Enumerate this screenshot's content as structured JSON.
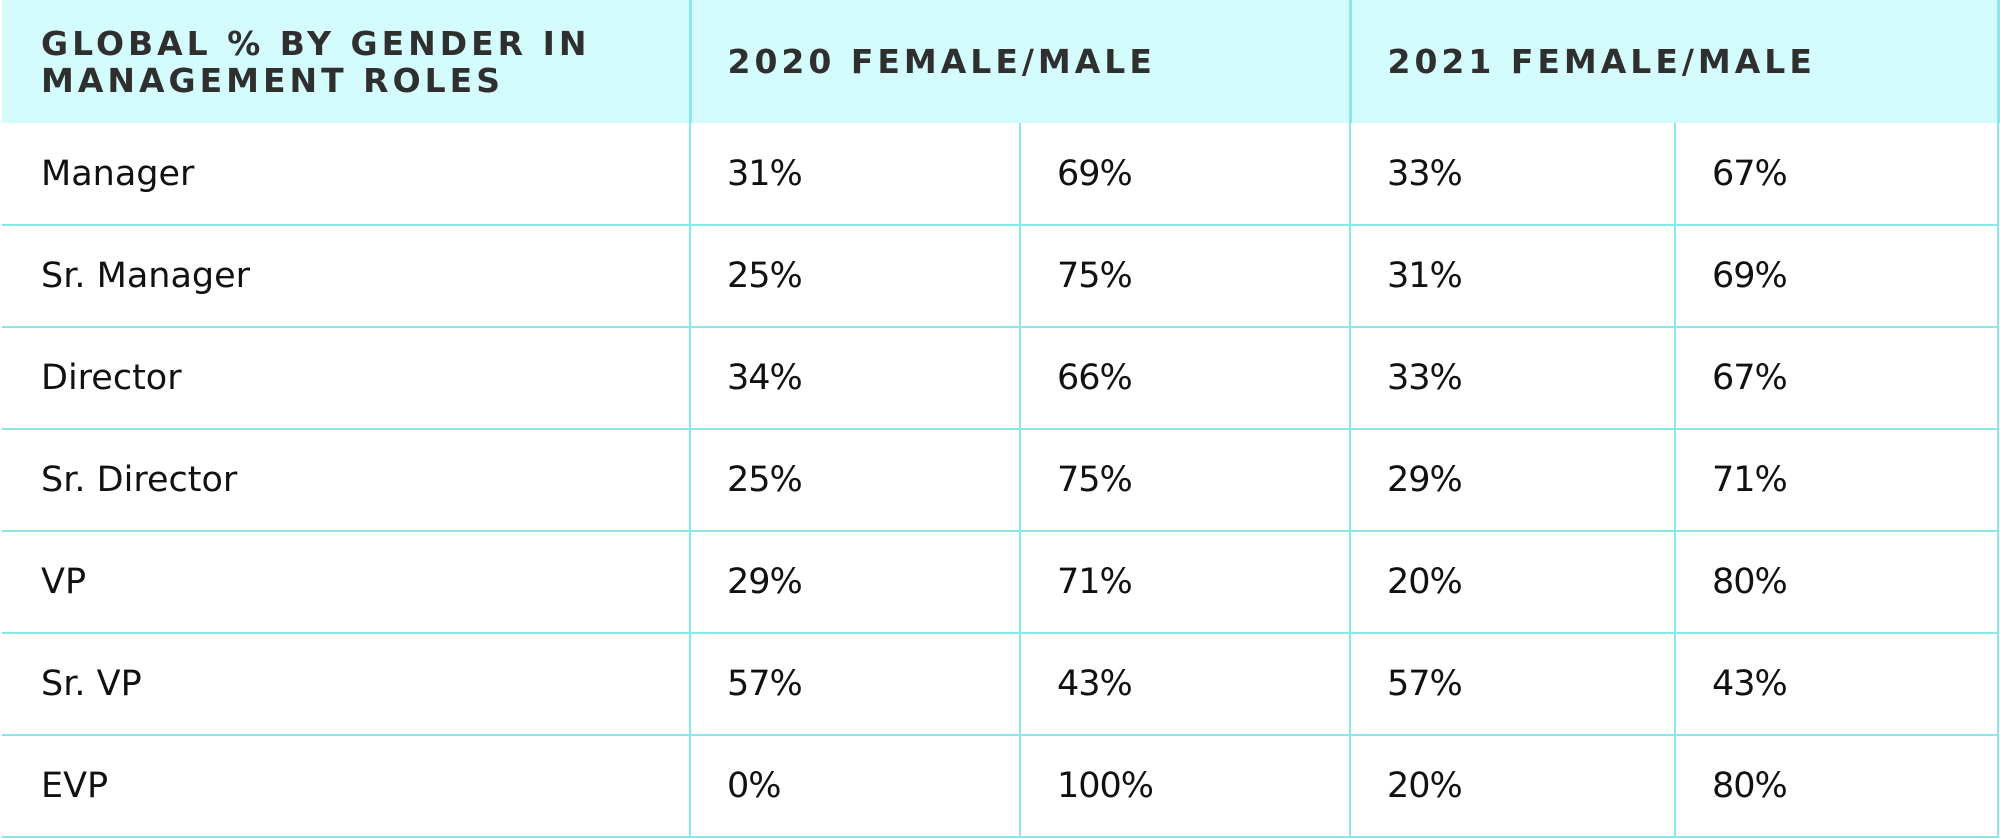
{
  "table": {
    "headers": {
      "role_line1": "GLOBAL % BY GENDER IN",
      "role_line2": "MANAGEMENT ROLES",
      "year_2020": "2020 FEMALE/MALE",
      "year_2021": "2021 FEMALE/MALE"
    },
    "rows": [
      {
        "role": "Manager",
        "f2020": "31%",
        "m2020": "69%",
        "f2021": "33%",
        "m2021": "67%"
      },
      {
        "role": "Sr. Manager",
        "f2020": "25%",
        "m2020": "75%",
        "f2021": "31%",
        "m2021": "69%"
      },
      {
        "role": "Director",
        "f2020": "34%",
        "m2020": "66%",
        "f2021": "33%",
        "m2021": "67%"
      },
      {
        "role": "Sr. Director",
        "f2020": "25%",
        "m2020": "75%",
        "f2021": "29%",
        "m2021": "71%"
      },
      {
        "role": "VP",
        "f2020": "29%",
        "m2020": "71%",
        "f2021": "20%",
        "m2021": "80%"
      },
      {
        "role": "Sr. VP",
        "f2020": "57%",
        "m2020": "43%",
        "f2021": "57%",
        "m2021": "43%"
      },
      {
        "role": "EVP",
        "f2020": "0%",
        "m2020": "100%",
        "f2021": "20%",
        "m2021": "80%"
      }
    ]
  },
  "colors": {
    "header_background": "#d4fcfd",
    "border": "#8ae8ec",
    "header_text": "#2f2f2f",
    "body_text": "#111111"
  }
}
